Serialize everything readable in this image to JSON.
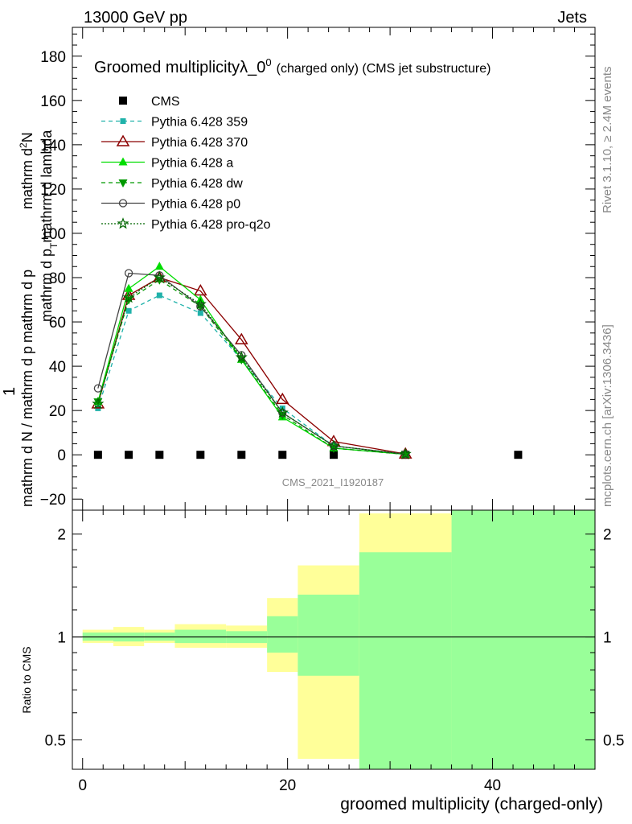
{
  "header": {
    "left": "13000 GeV pp",
    "right": "Jets"
  },
  "side": {
    "rivet": "Rivet 3.1.10, ≥ 2.4M events",
    "mcplots": "mcplots.cern.ch [arXiv:1306.3436]"
  },
  "chart_data": {
    "type": "line",
    "title": "Groomed multiplicityλ_0",
    "title_sup": "0",
    "subtitle": "(charged only) (CMS jet substructure)",
    "watermark": "CMS_2021_I1920187",
    "xlabel": "groomed multiplicity (charged-only)",
    "ylabel": {
      "top": "1",
      "upper_numerator": "mathrm d",
      "upper_sup": "2",
      "upper_N": "N",
      "upper_denominator": "mathrm d p_T mathrm d lambda",
      "bottom": "mathrm d N / mathrm d p_T mathrm d p_T mathrm d lambda"
    },
    "ylabel_lines": [
      "mathrm d",
      "2",
      "N",
      "mathrm d p",
      "T",
      "mathrm d lambda",
      "1",
      "mathrm d N / mathrm d p",
      "mathrm d p"
    ],
    "xlim": [
      -1,
      50
    ],
    "ylim": [
      -25,
      193
    ],
    "xticks": [
      "0",
      "20",
      "40"
    ],
    "yticks": [
      "−20",
      "0",
      "20",
      "40",
      "60",
      "80",
      "100",
      "120",
      "140",
      "160",
      "180"
    ],
    "x": [
      1.5,
      4.5,
      7.5,
      11.5,
      15.5,
      19.5,
      24.5,
      31.5,
      42.5
    ],
    "series": [
      {
        "name": "CMS",
        "color": "#000000",
        "marker": "square",
        "values": [
          0,
          0,
          0,
          0,
          0,
          0,
          0,
          0,
          0
        ]
      },
      {
        "name": "Pythia 6.428 359",
        "color": "#20b2aa",
        "marker": "square-small",
        "dash": "dashed",
        "values": [
          21,
          65,
          72,
          64,
          43,
          21,
          4,
          0.3,
          null
        ]
      },
      {
        "name": "Pythia 6.428 370",
        "color": "#8b0000",
        "marker": "triangle-open",
        "dash": "solid",
        "values": [
          23,
          72,
          80,
          74,
          52,
          25,
          6,
          0.4,
          null
        ]
      },
      {
        "name": "Pythia 6.428 a",
        "color": "#00dd00",
        "marker": "triangle",
        "dash": "solid",
        "values": [
          24,
          75,
          85,
          70,
          43,
          17,
          3,
          0.2,
          null
        ]
      },
      {
        "name": "Pythia 6.428 dw",
        "color": "#009900",
        "marker": "triangle-down",
        "dash": "dashed",
        "values": [
          24,
          70,
          79,
          67,
          43,
          18,
          3,
          0.2,
          null
        ]
      },
      {
        "name": "Pythia 6.428 p0",
        "color": "#444444",
        "marker": "circle-open",
        "dash": "solid",
        "values": [
          30,
          82,
          81,
          67,
          45,
          19,
          4,
          0.3,
          null
        ]
      },
      {
        "name": "Pythia 6.428 pro-q2o",
        "color": "#006600",
        "marker": "star",
        "dash": "dotted",
        "values": [
          23,
          71,
          80,
          68,
          44,
          19,
          4,
          0.3,
          null
        ]
      }
    ],
    "ratio": {
      "ylabel": "Ratio to CMS",
      "yticks": [
        "0.5",
        "1",
        "2"
      ],
      "ylim": [
        0.41,
        2.35
      ],
      "scale": "log",
      "bins": [
        {
          "lo": 0,
          "hi": 3,
          "yellow": [
            0.96,
            1.05
          ],
          "green": [
            0.975,
            1.03
          ]
        },
        {
          "lo": 3,
          "hi": 6,
          "yellow": [
            0.94,
            1.07
          ],
          "green": [
            0.97,
            1.03
          ]
        },
        {
          "lo": 6,
          "hi": 9,
          "yellow": [
            0.96,
            1.05
          ],
          "green": [
            0.975,
            1.03
          ]
        },
        {
          "lo": 9,
          "hi": 14,
          "yellow": [
            0.93,
            1.09
          ],
          "green": [
            0.96,
            1.05
          ]
        },
        {
          "lo": 14,
          "hi": 18,
          "yellow": [
            0.93,
            1.08
          ],
          "green": [
            0.96,
            1.04
          ]
        },
        {
          "lo": 18,
          "hi": 21,
          "yellow": [
            0.79,
            1.3
          ],
          "green": [
            0.9,
            1.15
          ]
        },
        {
          "lo": 21,
          "hi": 27,
          "yellow": [
            0.44,
            1.62
          ],
          "green": [
            0.77,
            1.33
          ]
        },
        {
          "lo": 27,
          "hi": 36,
          "yellow": [
            0.3,
            2.3
          ],
          "green": [
            0.3,
            1.77
          ]
        },
        {
          "lo": 36,
          "hi": 50,
          "yellow": [
            0.3,
            2.4
          ],
          "green": [
            0.3,
            2.4
          ]
        }
      ]
    },
    "colors": {
      "yellow": "#ffff99",
      "green": "#99ff99"
    }
  }
}
